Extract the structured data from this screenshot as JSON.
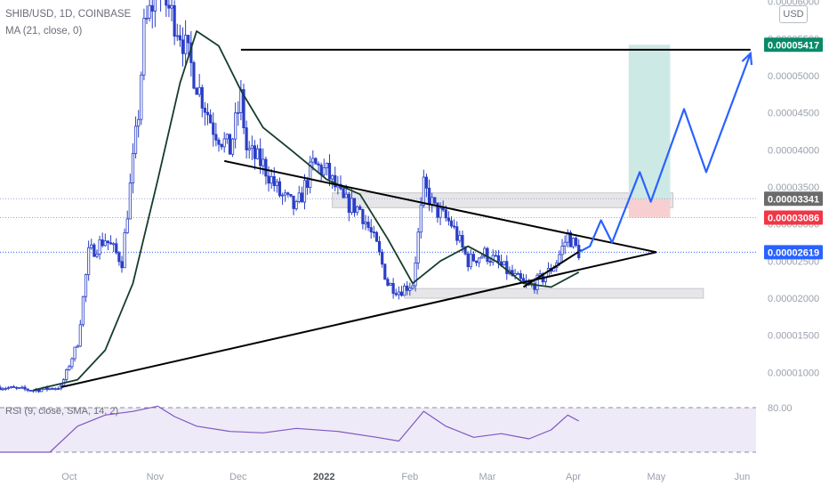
{
  "legend": {
    "title": "SHIB/USD, 1D, COINBASE",
    "ma": "MA (21, close, 0)",
    "rsi": "RSI (9, close, SMA, 14, 2)"
  },
  "currency_button": "USD",
  "colors": {
    "candle": "#2a3fc7",
    "ma_line": "#143d2b",
    "trendline": "#000000",
    "projection": "#2962ff",
    "target_zone": "#cde9e5",
    "stop_zone": "#f7cfd1",
    "resistance_zone": "#e6e6e9",
    "rsi_line": "#7e57c2",
    "rsi_band": "#efeaf8",
    "tag_target": "#0a8a68",
    "tag_entry": "#6b6b6b",
    "tag_stop": "#f23645",
    "tag_last": "#2962ff",
    "axis_text": "#9aa0ab"
  },
  "chart_data": {
    "type": "candlestick",
    "title": "SHIB/USD, 1D, COINBASE",
    "indicator": "MA (21, close, 0)",
    "x_tick_labels": [
      "Oct",
      "Nov",
      "Dec",
      "2022",
      "Feb",
      "Mar",
      "Apr",
      "May",
      "Jun"
    ],
    "y_tick_labels": [
      "0.00006000",
      "0.00005500",
      "0.00005000",
      "0.00004500",
      "0.00004000",
      "0.00003500",
      "0.00003000",
      "0.00002500",
      "0.00002000",
      "0.00001500",
      "0.00001000"
    ],
    "y_range": [
      6.2e-06,
      6.02e-05
    ],
    "x_range": [
      "2021-09-06",
      "2022-06-06"
    ],
    "price_tags": [
      {
        "label": "0.00005417",
        "value": 5.417e-05,
        "role": "target"
      },
      {
        "label": "0.00003341",
        "value": 3.341e-05,
        "role": "entry"
      },
      {
        "label": "0.00003086",
        "value": 3.086e-05,
        "role": "stop"
      },
      {
        "label": "0.00002619",
        "value": 2.619e-05,
        "role": "last"
      }
    ],
    "candle_keypoints": [
      [
        "2021-09-06",
        8e-06
      ],
      [
        "2021-09-18",
        7.6e-06
      ],
      [
        "2021-09-28",
        8e-06
      ],
      [
        "2021-10-04",
        1.4e-05
      ],
      [
        "2021-10-08",
        2.6e-05
      ],
      [
        "2021-10-14",
        2.8e-05
      ],
      [
        "2021-10-20",
        2.5e-05
      ],
      [
        "2021-10-26",
        4.5e-05
      ],
      [
        "2021-10-28",
        5.6e-05
      ],
      [
        "2021-11-02",
        6.2e-05
      ],
      [
        "2021-11-06",
        5.9e-05
      ],
      [
        "2021-11-10",
        5.6e-05
      ],
      [
        "2021-11-16",
        4.9e-05
      ],
      [
        "2021-11-22",
        4.3e-05
      ],
      [
        "2021-11-28",
        4e-05
      ],
      [
        "2021-12-02",
        4.7e-05
      ],
      [
        "2021-12-04",
        4e-05
      ],
      [
        "2021-12-10",
        3.8e-05
      ],
      [
        "2021-12-16",
        3.4e-05
      ],
      [
        "2021-12-22",
        3.2e-05
      ],
      [
        "2021-12-28",
        3.8e-05
      ],
      [
        "2022-01-02",
        3.7e-05
      ],
      [
        "2022-01-08",
        3.3e-05
      ],
      [
        "2022-01-14",
        3.2e-05
      ],
      [
        "2022-01-20",
        2.7e-05
      ],
      [
        "2022-01-24",
        2.2e-05
      ],
      [
        "2022-01-28",
        2.1e-05
      ],
      [
        "2022-02-02",
        2.2e-05
      ],
      [
        "2022-02-06",
        3.5e-05
      ],
      [
        "2022-02-10",
        3.2e-05
      ],
      [
        "2022-02-16",
        3e-05
      ],
      [
        "2022-02-22",
        2.5e-05
      ],
      [
        "2022-02-28",
        2.6e-05
      ],
      [
        "2022-03-04",
        2.5e-05
      ],
      [
        "2022-03-10",
        2.3e-05
      ],
      [
        "2022-03-16",
        2.15e-05
      ],
      [
        "2022-03-22",
        2.3e-05
      ],
      [
        "2022-03-26",
        2.5e-05
      ],
      [
        "2022-03-30",
        2.85e-05
      ],
      [
        "2022-04-03",
        2.62e-05
      ]
    ],
    "ma_keypoints": [
      [
        "2021-09-18",
        7.6e-06
      ],
      [
        "2021-10-04",
        9e-06
      ],
      [
        "2021-10-14",
        1.3e-05
      ],
      [
        "2021-10-24",
        2.2e-05
      ],
      [
        "2021-11-02",
        3.6e-05
      ],
      [
        "2021-11-10",
        4.9e-05
      ],
      [
        "2021-11-16",
        5.6e-05
      ],
      [
        "2021-11-24",
        5.4e-05
      ],
      [
        "2021-12-02",
        4.8e-05
      ],
      [
        "2021-12-10",
        4.3e-05
      ],
      [
        "2021-12-20",
        4e-05
      ],
      [
        "2022-01-02",
        3.6e-05
      ],
      [
        "2022-01-14",
        3.4e-05
      ],
      [
        "2022-01-24",
        2.8e-05
      ],
      [
        "2022-02-02",
        2.2e-05
      ],
      [
        "2022-02-12",
        2.5e-05
      ],
      [
        "2022-02-22",
        2.7e-05
      ],
      [
        "2022-03-04",
        2.5e-05
      ],
      [
        "2022-03-14",
        2.2e-05
      ],
      [
        "2022-03-24",
        2.15e-05
      ],
      [
        "2022-04-03",
        2.35e-05
      ]
    ],
    "trendlines": [
      {
        "name": "resistance",
        "from": [
          "2021-11-26",
          3.85e-05
        ],
        "to": [
          "2022-05-01",
          2.62e-05
        ]
      },
      {
        "name": "support",
        "from": [
          "2021-09-28",
          8e-06
        ],
        "to": [
          "2022-05-01",
          2.62e-05
        ]
      },
      {
        "name": "target",
        "from": [
          "2021-12-02",
          5.35e-05
        ],
        "to": [
          "2022-06-04",
          5.35e-05
        ]
      },
      {
        "name": "minor-support",
        "from": [
          "2022-03-14",
          2.15e-05
        ],
        "to": [
          "2022-04-04",
          2.65e-05
        ]
      }
    ],
    "zones": [
      {
        "name": "resistance-zone",
        "from": "2022-01-04",
        "to": "2022-05-07",
        "low": 3.22e-05,
        "high": 3.42e-05
      },
      {
        "name": "support-zone",
        "from": "2022-01-30",
        "to": "2022-05-18",
        "low": 2e-05,
        "high": 2.13e-05
      },
      {
        "name": "target-zone",
        "from": "2022-04-21",
        "to": "2022-05-06",
        "low": 3.34e-05,
        "high": 5.417e-05
      },
      {
        "name": "stop-zone",
        "from": "2022-04-21",
        "to": "2022-05-06",
        "low": 3.086e-05,
        "high": 3.34e-05
      }
    ],
    "projection_path": [
      [
        "2022-04-03",
        2.62e-05
      ],
      [
        "2022-04-07",
        2.7e-05
      ],
      [
        "2022-04-11",
        3.05e-05
      ],
      [
        "2022-04-15",
        2.75e-05
      ],
      [
        "2022-04-25",
        3.7e-05
      ],
      [
        "2022-04-29",
        3.3e-05
      ],
      [
        "2022-05-11",
        4.55e-05
      ],
      [
        "2022-05-19",
        3.7e-05
      ],
      [
        "2022-06-04",
        5.3e-05
      ]
    ],
    "rsi": {
      "name": "RSI (9, close, SMA, 14, 2)",
      "y_tick_labels": [
        "80.00"
      ],
      "upper": 80,
      "lower": 20,
      "values": [
        [
          "2021-09-06",
          20
        ],
        [
          "2021-09-24",
          20
        ],
        [
          "2021-10-04",
          55
        ],
        [
          "2021-10-14",
          70
        ],
        [
          "2021-10-24",
          75
        ],
        [
          "2021-11-02",
          82
        ],
        [
          "2021-11-08",
          68
        ],
        [
          "2021-11-16",
          55
        ],
        [
          "2021-11-28",
          48
        ],
        [
          "2021-12-10",
          46
        ],
        [
          "2021-12-22",
          52
        ],
        [
          "2022-01-06",
          48
        ],
        [
          "2022-01-20",
          40
        ],
        [
          "2022-01-28",
          35
        ],
        [
          "2022-02-06",
          75
        ],
        [
          "2022-02-14",
          55
        ],
        [
          "2022-02-24",
          40
        ],
        [
          "2022-03-06",
          45
        ],
        [
          "2022-03-16",
          38
        ],
        [
          "2022-03-24",
          50
        ],
        [
          "2022-03-30",
          70
        ],
        [
          "2022-04-03",
          62
        ]
      ]
    }
  }
}
